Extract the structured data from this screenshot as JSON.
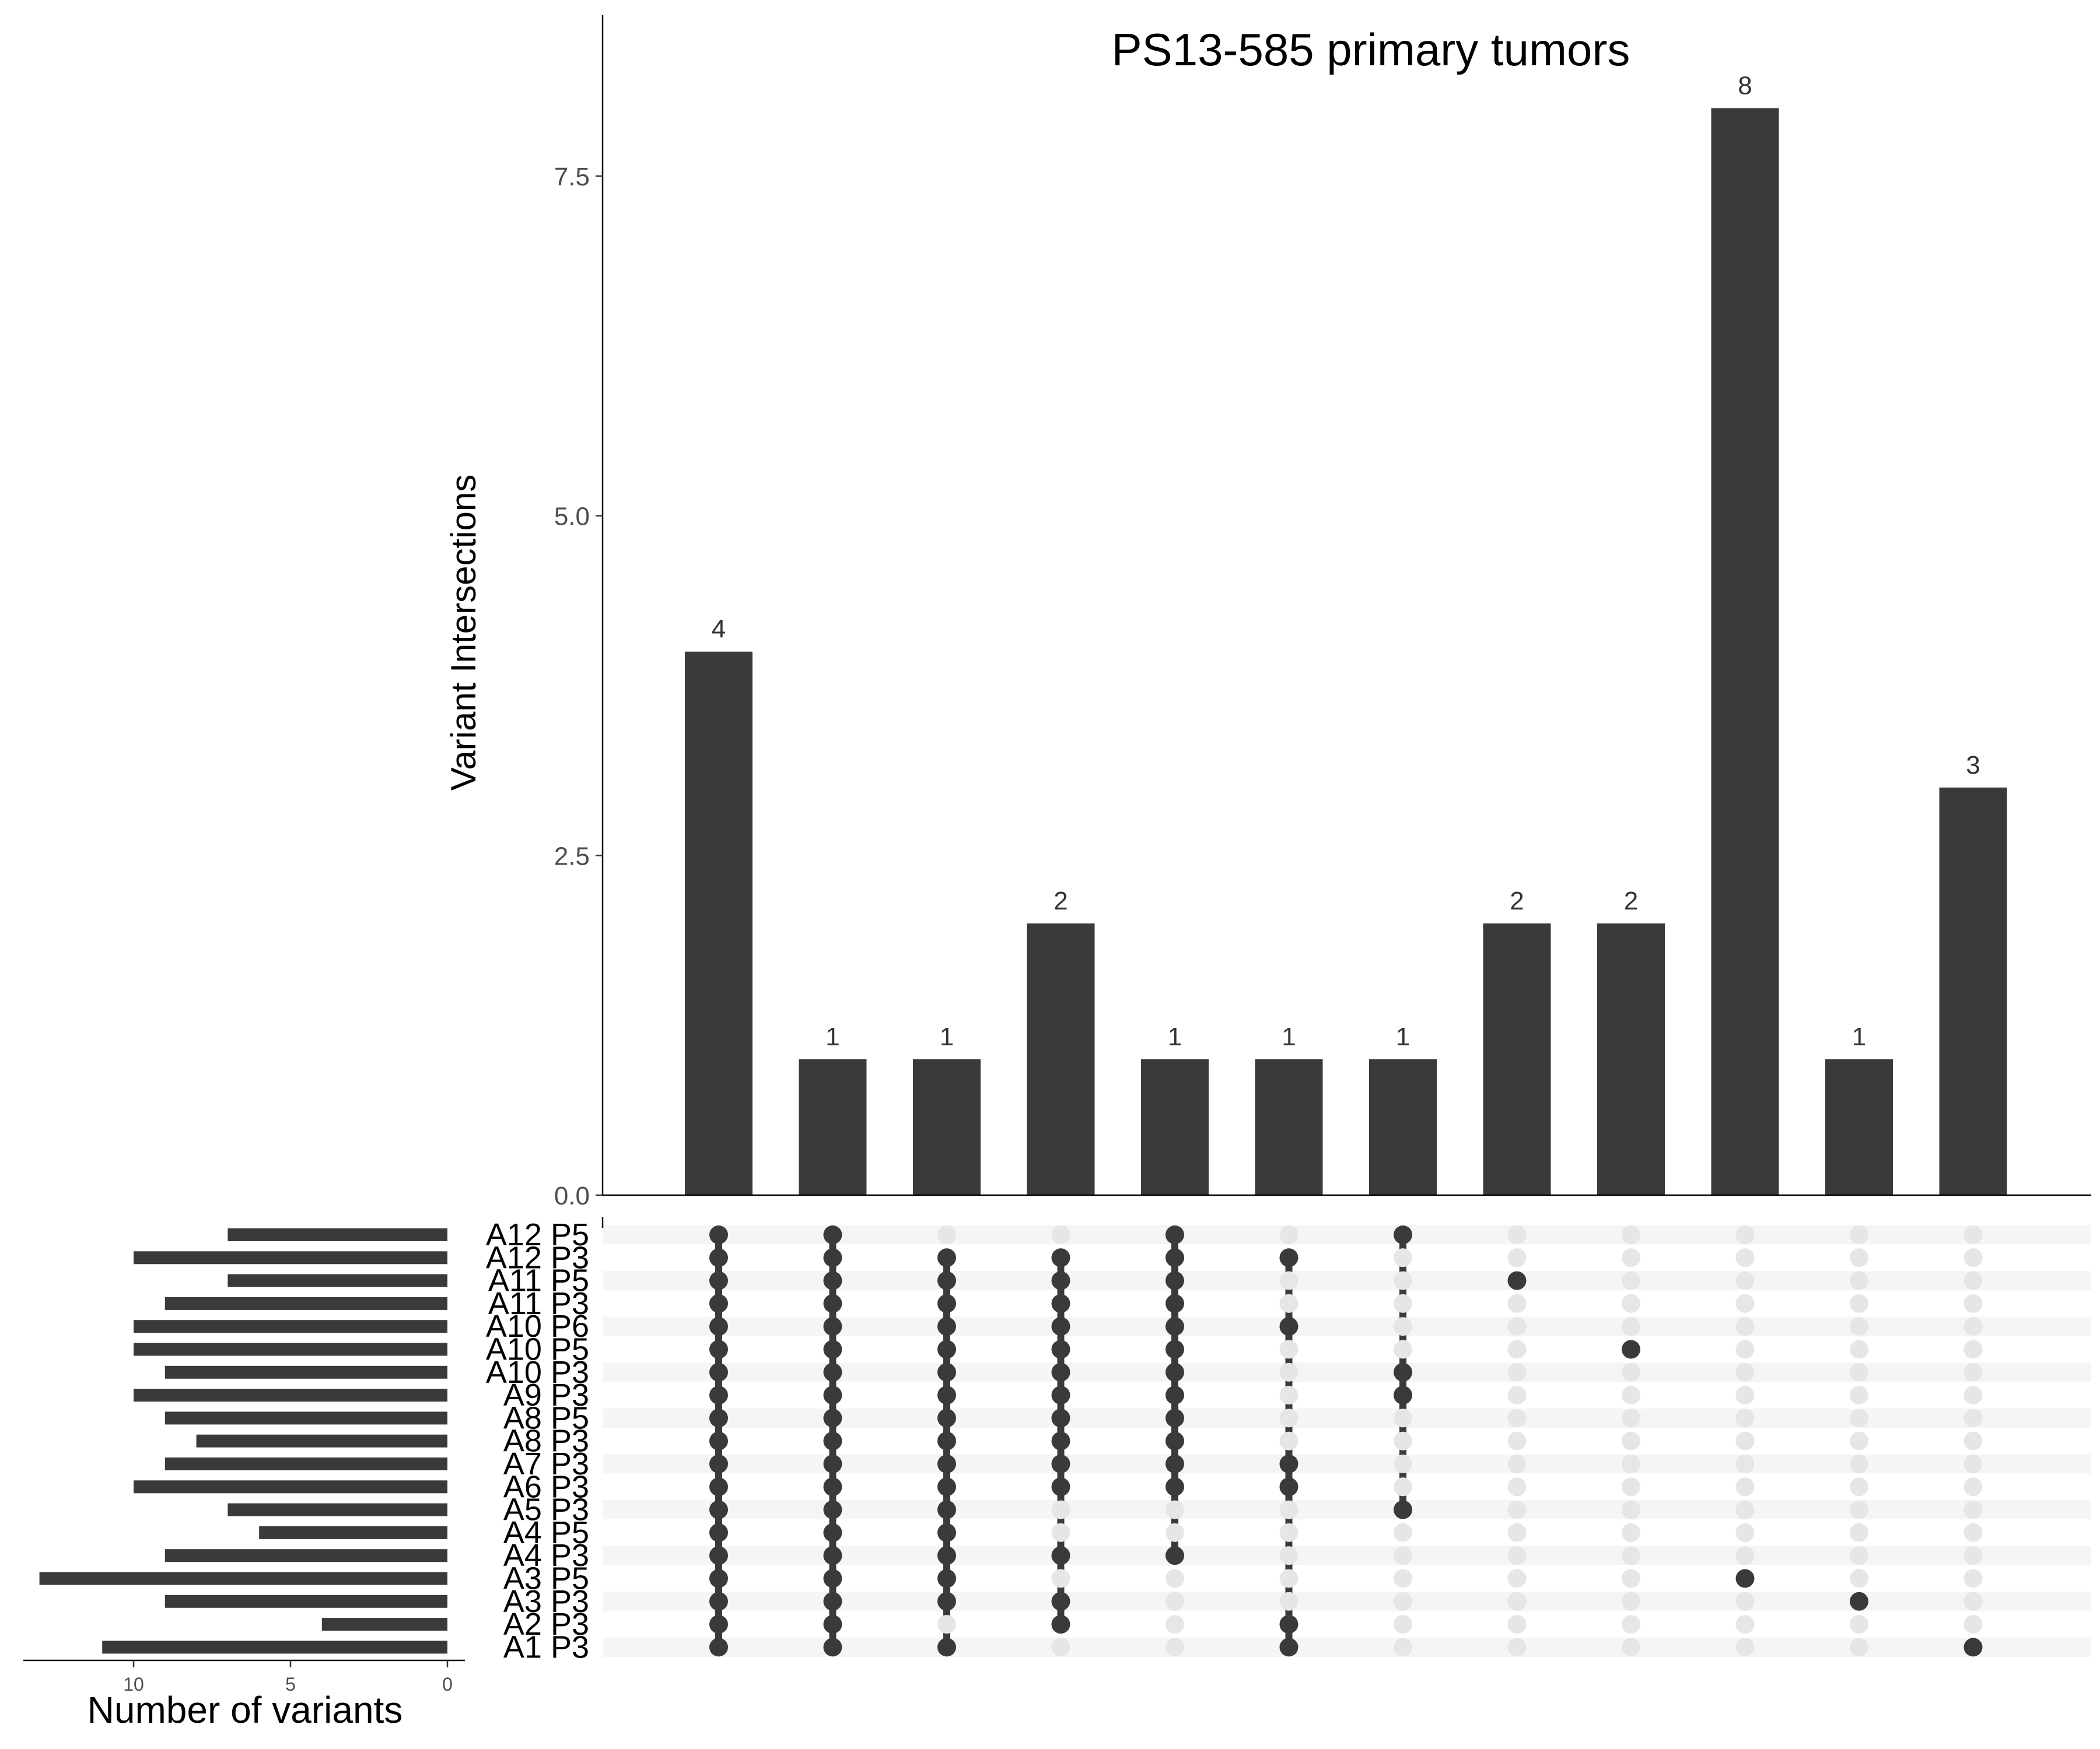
{
  "chart_data": {
    "type": "upset",
    "title": "PS13-585 primary tumors",
    "ylabel": "Variant Intersections",
    "set_size_xlabel": "Number of variants",
    "ylim": [
      0,
      9.2
    ],
    "yticks": [
      0.0,
      2.5,
      5.0,
      7.5
    ],
    "ytick_labels": [
      "0.0",
      "2.5",
      "5.0",
      "7.5"
    ],
    "set_size_xlim": [
      0,
      14
    ],
    "set_size_ticks": [
      10,
      5,
      0
    ],
    "set_size_tick_labels": [
      "10",
      "5",
      "0"
    ],
    "sets": [
      {
        "name": "A12 P5",
        "size": 7
      },
      {
        "name": "A12 P3",
        "size": 10
      },
      {
        "name": "A11 P5",
        "size": 7
      },
      {
        "name": "A11 P3",
        "size": 9
      },
      {
        "name": "A10 P6",
        "size": 10
      },
      {
        "name": "A10 P5",
        "size": 10
      },
      {
        "name": "A10 P3",
        "size": 9
      },
      {
        "name": "A9 P3",
        "size": 10
      },
      {
        "name": "A8 P5",
        "size": 9
      },
      {
        "name": "A8 P3",
        "size": 8
      },
      {
        "name": "A7 P3",
        "size": 9
      },
      {
        "name": "A6 P3",
        "size": 10
      },
      {
        "name": "A5 P3",
        "size": 7
      },
      {
        "name": "A4 P5",
        "size": 6
      },
      {
        "name": "A4 P3",
        "size": 9
      },
      {
        "name": "A3 P5",
        "size": 13
      },
      {
        "name": "A3 P3",
        "size": 9
      },
      {
        "name": "A2 P3",
        "size": 4
      },
      {
        "name": "A1 P3",
        "size": 11
      }
    ],
    "intersections": [
      {
        "value": 4,
        "label": "4",
        "members": [
          0,
          1,
          2,
          3,
          4,
          5,
          6,
          7,
          8,
          9,
          10,
          11,
          12,
          13,
          14,
          15,
          16,
          17,
          18
        ]
      },
      {
        "value": 1,
        "label": "1",
        "members": [
          0,
          1,
          2,
          3,
          4,
          5,
          6,
          7,
          8,
          9,
          10,
          11,
          12,
          13,
          14,
          15,
          16,
          17,
          18
        ]
      },
      {
        "value": 1,
        "label": "1",
        "members": [
          1,
          2,
          3,
          4,
          5,
          6,
          7,
          8,
          9,
          10,
          11,
          12,
          13,
          14,
          15,
          16,
          18
        ]
      },
      {
        "value": 2,
        "label": "2",
        "members": [
          1,
          2,
          3,
          4,
          5,
          6,
          7,
          8,
          9,
          10,
          11,
          14,
          16,
          17
        ]
      },
      {
        "value": 1,
        "label": "1",
        "members": [
          0,
          1,
          2,
          3,
          4,
          5,
          6,
          7,
          8,
          9,
          10,
          11,
          14
        ]
      },
      {
        "value": 1,
        "label": "1",
        "members": [
          1,
          4,
          10,
          11,
          17,
          18
        ]
      },
      {
        "value": 1,
        "label": "1",
        "members": [
          0,
          6,
          7,
          12
        ]
      },
      {
        "value": 2,
        "label": "2",
        "members": [
          2
        ]
      },
      {
        "value": 2,
        "label": "2",
        "members": [
          5
        ]
      },
      {
        "value": 8,
        "label": "8",
        "members": [
          15
        ]
      },
      {
        "value": 1,
        "label": "1",
        "members": [
          16
        ]
      },
      {
        "value": 3,
        "label": "3",
        "members": [
          18
        ]
      }
    ],
    "colors": {
      "bar": "#3a3a3a",
      "dot_active": "#3a3a3a",
      "dot_inactive": "#e6e6e6",
      "stripe": "#f5f5f5"
    },
    "grid": false
  }
}
